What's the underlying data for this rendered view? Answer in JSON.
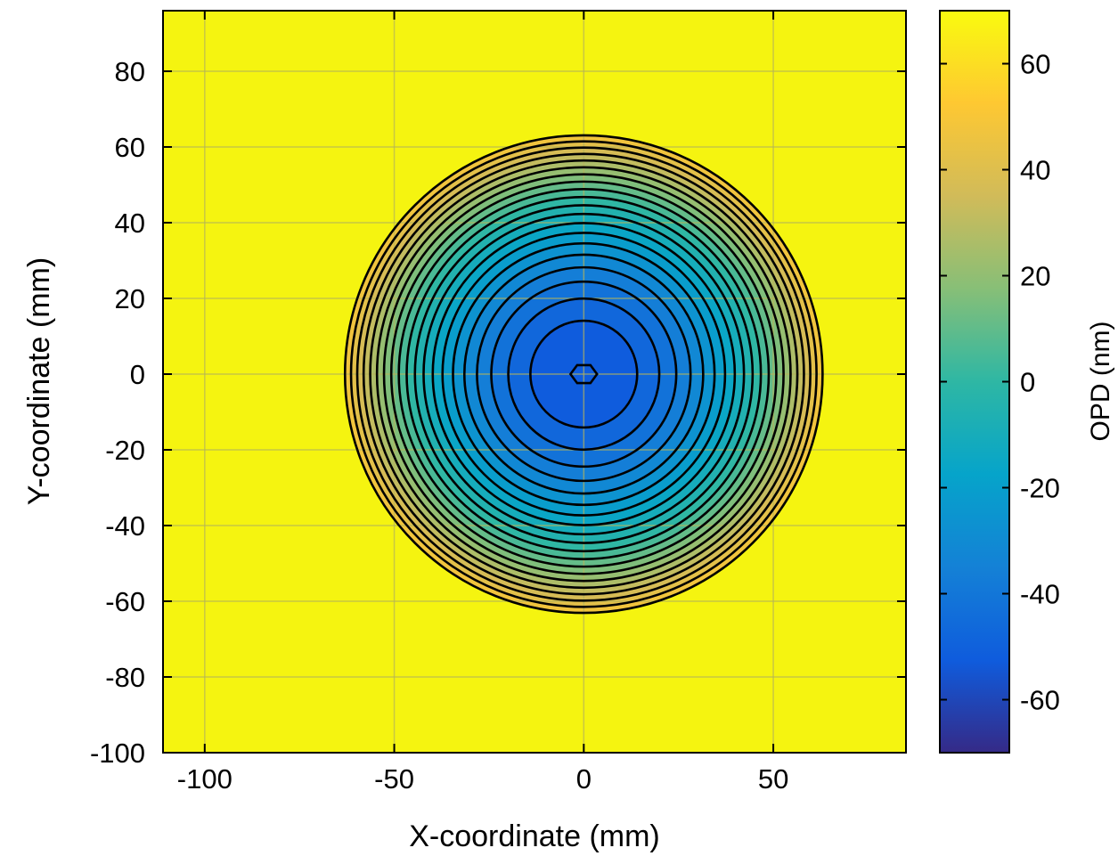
{
  "chart_data": {
    "type": "heatmap",
    "subtype": "filled-contour",
    "title": "",
    "xlabel": "X-coordinate (mm)",
    "ylabel": "Y-coordinate (mm)",
    "xlim": [
      -111,
      85
    ],
    "ylim": [
      -100,
      96
    ],
    "x_ticks": [
      -100,
      -50,
      0,
      50
    ],
    "y_ticks": [
      -100,
      -80,
      -60,
      -40,
      -20,
      0,
      20,
      40,
      60,
      80
    ],
    "x_tick_labels": [
      "-100",
      "-50",
      "0",
      "50"
    ],
    "y_tick_labels": [
      "-100",
      "-80",
      "-60",
      "-40",
      "-20",
      "0",
      "20",
      "40",
      "60",
      "80"
    ],
    "grid": true,
    "surface": {
      "description": "radially symmetric OPD map over a circular aperture",
      "center": [
        0,
        0
      ],
      "aperture_radius_mm": 63,
      "opd_at_center_nm": -55,
      "opd_at_edge_nm": 50,
      "profile": "quadratic in radius",
      "outside_aperture_value": "top of colormap"
    },
    "contour_levels_count": 20,
    "colorbar": {
      "label": "OPD (nm)",
      "range": [
        -70,
        70
      ],
      "ticks": [
        -60,
        -40,
        -20,
        0,
        20,
        40,
        60
      ],
      "tick_labels": [
        "-60",
        "-40",
        "-20",
        "0",
        "20",
        "40",
        "60"
      ],
      "colormap": "parula",
      "location": "right"
    },
    "colors": {
      "background_fill": "#f5f410",
      "contour_line": "#000000",
      "grid_line": "#b5b45a",
      "colormap_stops": [
        "#352a87",
        "#0f5cdd",
        "#1481d6",
        "#06a4ca",
        "#2eb7a4",
        "#87bf77",
        "#d1bb59",
        "#fec832",
        "#f9fb0e"
      ]
    }
  }
}
